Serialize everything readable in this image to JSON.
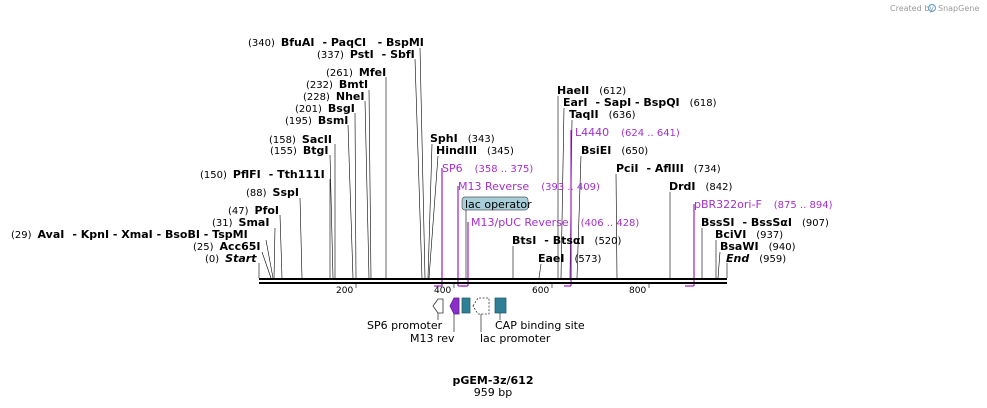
{
  "credit": {
    "prefix": "Created by",
    "brand": "SnapGene"
  },
  "plasmid": {
    "name": "pGEM-3z/612",
    "length": "959 bp"
  },
  "axis": {
    "ticks": [
      "200",
      "400",
      "600",
      "800"
    ]
  },
  "sites_left": {
    "bfuai": {
      "pos": "(340)",
      "name": "BfuAI",
      "extra": "- PaqCI   - BspMI"
    },
    "psti": {
      "pos": "(337)",
      "name": "PstI",
      "extra": "- SbfI"
    },
    "mfei": {
      "pos": "(261)",
      "name": "MfeI"
    },
    "bmti": {
      "pos": "(232)",
      "name": "BmtI"
    },
    "nhei": {
      "pos": "(228)",
      "name": "NheI"
    },
    "bsgi": {
      "pos": "(201)",
      "name": "BsgI"
    },
    "bsmi": {
      "pos": "(195)",
      "name": "BsmI"
    },
    "sacii": {
      "pos": "(158)",
      "name": "SacII"
    },
    "btgi": {
      "pos": "(155)",
      "name": "BtgI"
    },
    "pflfi": {
      "pos": "(150)",
      "name": "PflFI",
      "extra": "- Tth111I"
    },
    "sspi": {
      "pos": "(88)",
      "name": "SspI"
    },
    "pfoi": {
      "pos": "(47)",
      "name": "PfoI"
    },
    "smai": {
      "pos": "(31)",
      "name": "SmaI"
    },
    "avai": {
      "pos": "(29)",
      "name": "AvaI",
      "extra": "- KpnI   - XmaI   - BsoBI   - TspMI"
    },
    "acc65i": {
      "pos": "(25)",
      "name": "Acc65I"
    },
    "start": {
      "pos": "(0)",
      "name": "Start"
    }
  },
  "sites_mid": {
    "sphi": {
      "name": "SphI",
      "pos": "(343)"
    },
    "hindiii": {
      "name": "HindIII",
      "pos": "(345)"
    }
  },
  "sites_right": {
    "haeii": {
      "name": "HaeII",
      "pos": "(612)"
    },
    "eari": {
      "name": "EarI",
      "extra": "- SapI   - BspQI",
      "pos": "(618)"
    },
    "taqii": {
      "name": "TaqII",
      "pos": "(636)"
    },
    "bsiei": {
      "name": "BsiEI",
      "pos": "(650)"
    },
    "pcii": {
      "name": "PciI",
      "extra": "- AflIII",
      "pos": "(734)"
    },
    "drdi": {
      "name": "DrdI",
      "pos": "(842)"
    },
    "btsi": {
      "name": "BtsI",
      "extra": "- BtsαI",
      "pos": "(520)"
    },
    "eaei": {
      "name": "EaeI",
      "pos": "(573)"
    },
    "bsssi": {
      "name": "BssSI",
      "extra": "- BssSαI",
      "pos": "(907)"
    },
    "bcivi": {
      "name": "BciVI",
      "pos": "(937)"
    },
    "bsawi": {
      "name": "BsaWI",
      "pos": "(940)"
    },
    "end": {
      "name": "End",
      "pos": "(959)"
    }
  },
  "primers": {
    "sp6": {
      "name": "SP6",
      "range": "(358 .. 375)"
    },
    "m13rev": {
      "name": "M13 Reverse",
      "range": "(393 .. 409)"
    },
    "m13puc": {
      "name": "M13/pUC Reverse",
      "range": "(406 .. 428)"
    },
    "l4440": {
      "name": "L4440",
      "range": "(624 .. 641)"
    },
    "pbr322": {
      "name": "pBR322ori-F",
      "range": "(875 .. 894)"
    }
  },
  "features": {
    "lac_operator": "lac operator",
    "sp6_promoter": "SP6 promoter",
    "m13_rev": "M13 rev",
    "lac_promoter": "lac promoter",
    "cap_site": "CAP binding site"
  },
  "colors": {
    "primer": "#a330c9",
    "feature_teal": "#2f7f97",
    "operator_fill": "#a8ced9"
  }
}
